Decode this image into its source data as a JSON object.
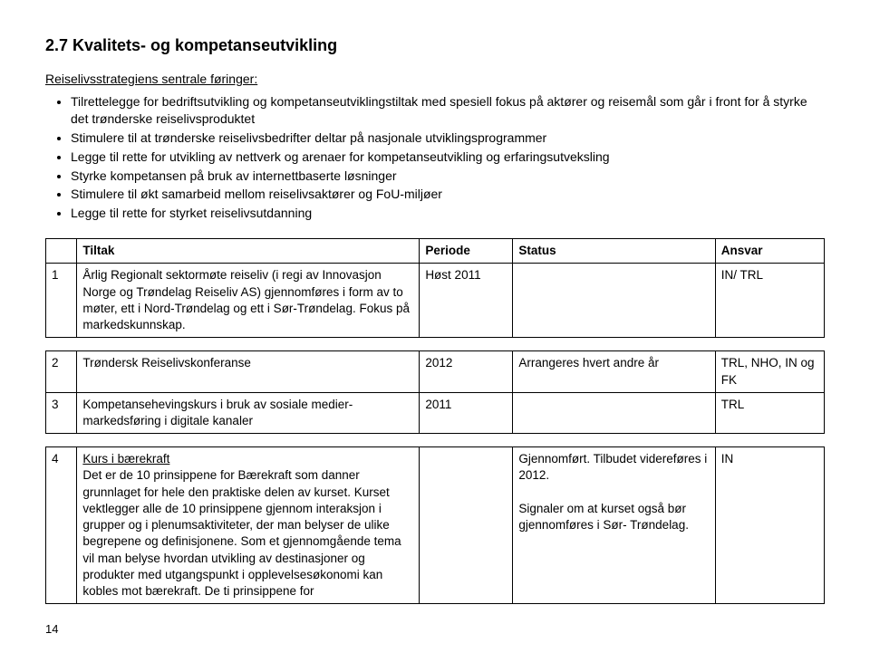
{
  "heading": "2.7  Kvalitets- og kompetanseutvikling",
  "intro_label": "Reiselivsstrategiens sentrale føringer:",
  "bullets": [
    "Tilrettelegge for bedriftsutvikling og kompetanseutviklingstiltak med spesiell fokus på aktører og reisemål som går i front for å styrke det trønderske reiselivsproduktet",
    "Stimulere til at trønderske reiselivsbedrifter deltar på nasjonale utviklingsprogrammer",
    "Legge til rette for utvikling av nettverk og arenaer for kompetanseutvikling og erfaringsutveksling",
    "Styrke kompetansen på bruk av internettbaserte løsninger",
    "Stimulere til økt samarbeid mellom reiselivsaktører og FoU-miljøer",
    "Legge til rette for styrket reiselivsutdanning"
  ],
  "columns": {
    "c0": "",
    "c1": "Tiltak",
    "c2": "Periode",
    "c3": "Status",
    "c4": "Ansvar"
  },
  "table1": [
    {
      "num": "1",
      "tiltak": "Årlig Regionalt sektormøte reiseliv (i regi av Innovasjon Norge og Trøndelag Reiseliv AS) gjennomføres i form av to møter, ett i Nord-Trøndelag og ett i Sør-Trøndelag. Fokus på markedskunnskap.",
      "periode": "Høst  2011",
      "status": "",
      "ansvar": "IN/ TRL"
    }
  ],
  "table2": [
    {
      "num": "2",
      "tiltak": "Trøndersk Reiselivskonferanse",
      "periode": "2012",
      "status": "Arrangeres hvert andre år",
      "ansvar": "TRL, NHO, IN og FK"
    },
    {
      "num": "3",
      "tiltak": "Kompetansehevingskurs i bruk av sosiale medier- markedsføring i digitale kanaler",
      "periode": "2011",
      "status": "",
      "ansvar": "TRL"
    }
  ],
  "table3": [
    {
      "num": "4",
      "tiltak_title": "Kurs i bærekraft",
      "tiltak_body": "Det er de 10 prinsippene for Bærekraft som danner grunnlaget for hele den praktiske delen av kurset. Kurset vektlegger alle de 10 prinsippene gjennom interaksjon i grupper og i plenumsaktiviteter, der man belyser de ulike begrepene og definisjonene. Som et gjennomgående tema vil man belyse hvordan utvikling av destinasjoner og produkter med utgangspunkt i opplevelsesøkonomi kan kobles mot bærekraft. De ti prinsippene for",
      "periode": "",
      "status_a": "Gjennomført. Tilbudet videreføres i 2012.",
      "status_b": "Signaler om at kurset også bør gjennomføres i Sør- Trøndelag.",
      "ansvar": "IN"
    }
  ],
  "pagenum": "14"
}
